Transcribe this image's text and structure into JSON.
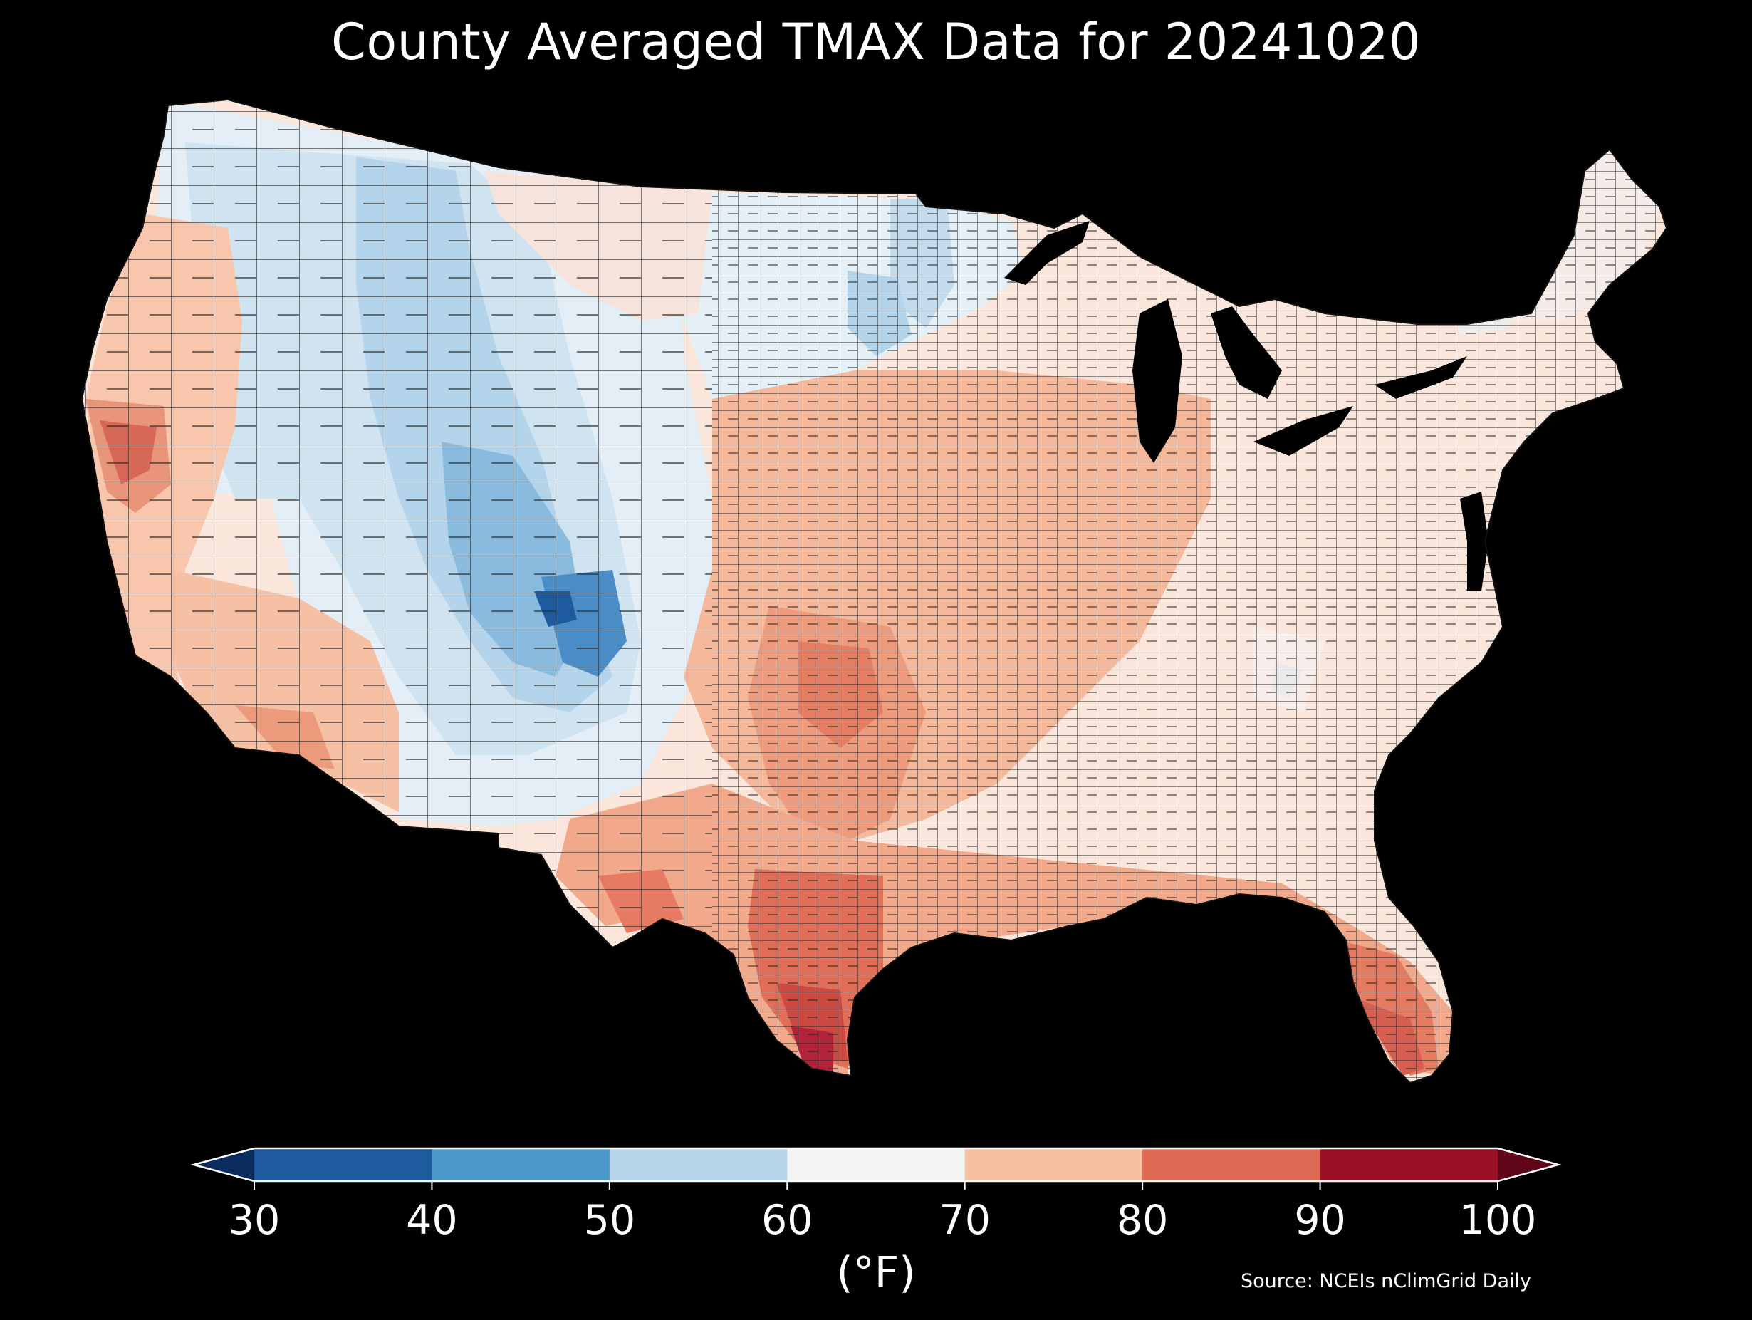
{
  "title": "County Averaged TMAX Data for 20241020",
  "source": "Source: NCEIs nClimGrid Daily",
  "colorbar": {
    "unit_label": "(°F)",
    "ticks": [
      "30",
      "40",
      "50",
      "60",
      "70",
      "80",
      "90",
      "100"
    ],
    "bins": [
      {
        "range": [
          30,
          40
        ],
        "color": "#1d5b9e"
      },
      {
        "range": [
          40,
          50
        ],
        "color": "#4a99c8"
      },
      {
        "range": [
          50,
          60
        ],
        "color": "#b5d6ea"
      },
      {
        "range": [
          60,
          70
        ],
        "color": "#f4f4f4"
      },
      {
        "range": [
          70,
          80
        ],
        "color": "#f8c0a3"
      },
      {
        "range": [
          80,
          90
        ],
        "color": "#dc6a52"
      },
      {
        "range": [
          90,
          100
        ],
        "color": "#9a1026"
      }
    ],
    "under_color": "#0a2c5e",
    "over_color": "#5f0719",
    "extend": "both"
  },
  "map_colors": {
    "background": "#000000",
    "county_border": "#1a1a1a",
    "lakes": "#000000"
  }
}
